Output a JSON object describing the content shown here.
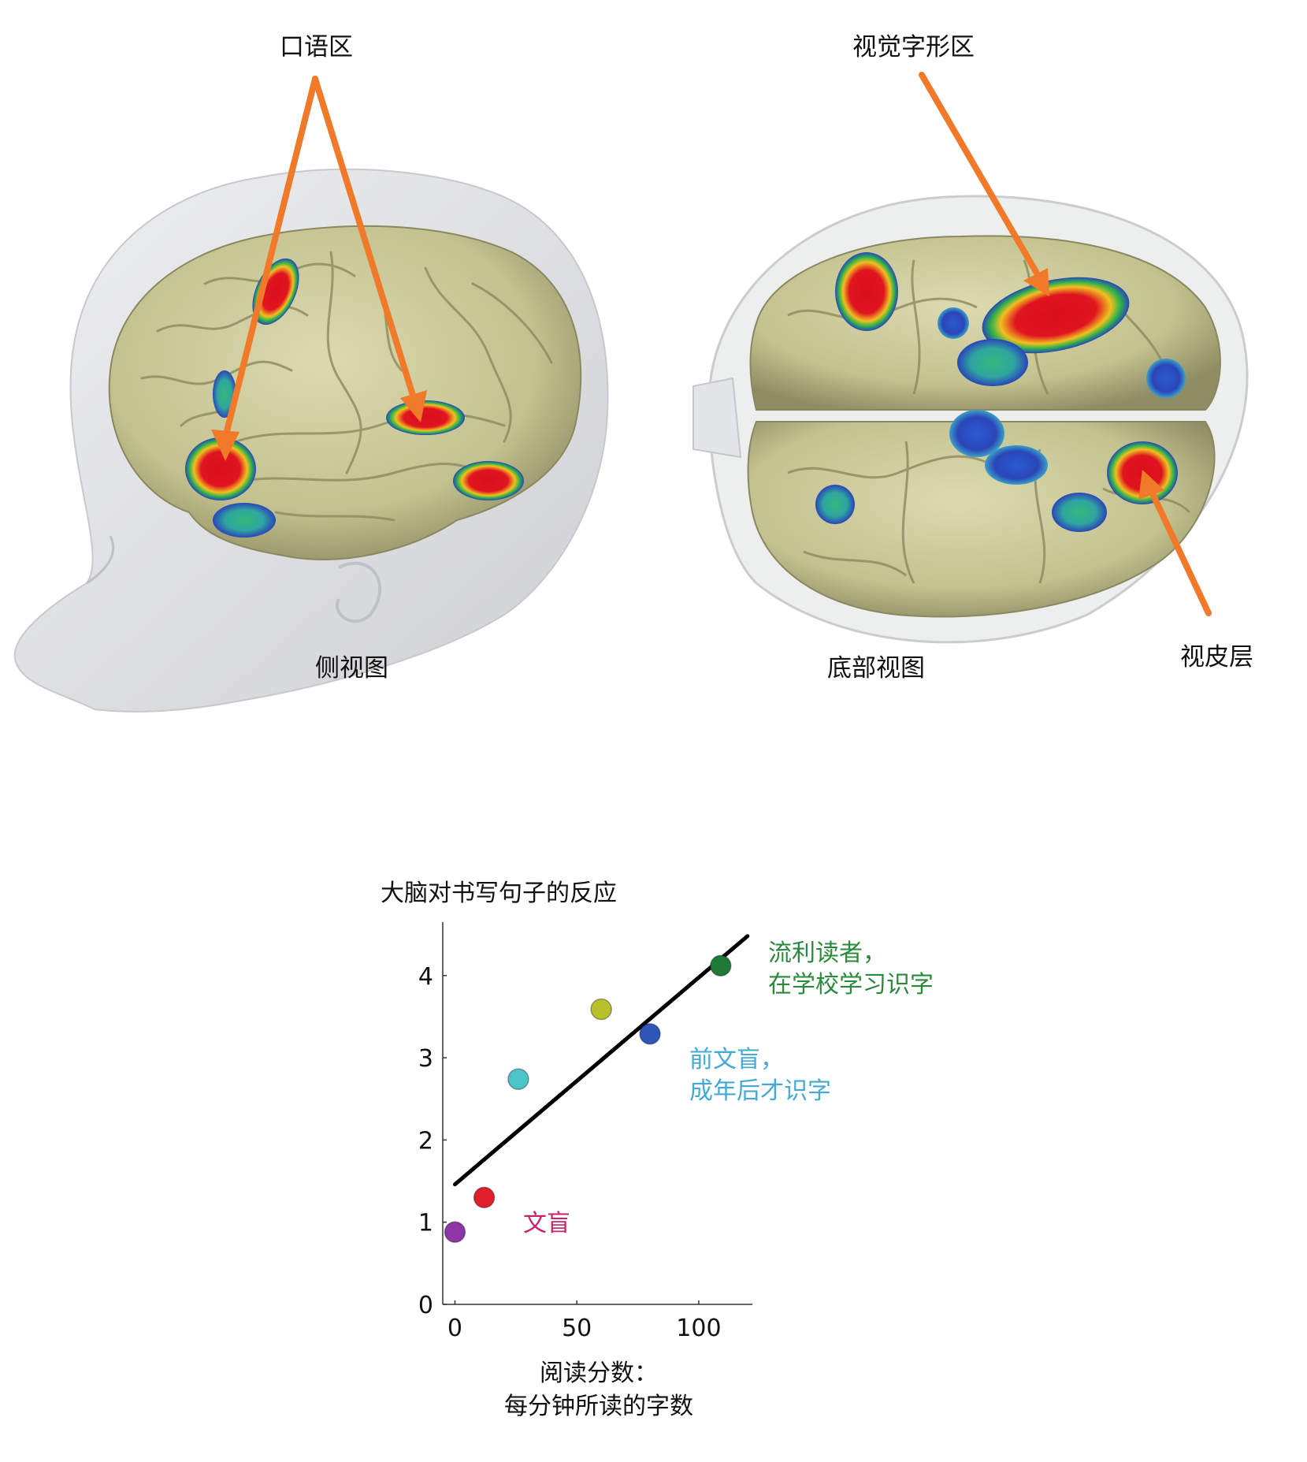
{
  "figure": {
    "labels": {
      "spoken_language_area": "口语区",
      "visual_word_form_area": "视觉字形区",
      "lateral_view": "侧视图",
      "bottom_view": "底部视图",
      "visual_cortex": "视皮层"
    },
    "colors": {
      "arrow": "#f07a2a",
      "brain": "#c9c79a",
      "head": "#dcdddf",
      "activation_hot": "#e0141f",
      "activation_mid": "#2fb24a",
      "activation_low": "#2a46b8"
    },
    "icons": [
      "head-icon",
      "brain-lateral-icon",
      "brain-bottom-icon",
      "arrow-icon"
    ]
  },
  "chart_data": {
    "type": "scatter",
    "title": "大脑对书写句子的反应",
    "xlabel_lines": [
      "阅读分数：",
      "每分钟所读的字数"
    ],
    "ylabel": "",
    "xlim": [
      -5,
      122
    ],
    "ylim": [
      0,
      4.65
    ],
    "xticks": [
      0,
      50,
      100
    ],
    "yticks": [
      0,
      1,
      2,
      3,
      4
    ],
    "points": [
      {
        "x": 0,
        "y": 0.88,
        "color": "#8e35a8"
      },
      {
        "x": 12,
        "y": 1.3,
        "color": "#e01f2b"
      },
      {
        "x": 26,
        "y": 2.74,
        "color": "#4dc4c7"
      },
      {
        "x": 60,
        "y": 3.59,
        "color": "#b8c12c"
      },
      {
        "x": 80,
        "y": 3.29,
        "color": "#2f56b8"
      },
      {
        "x": 109,
        "y": 4.12,
        "color": "#1e7a36"
      }
    ],
    "fit_line": {
      "x": [
        0,
        120
      ],
      "y": [
        1.46,
        4.48
      ]
    },
    "annotations": [
      {
        "lines": [
          "流利读者，",
          "在学校学习识字"
        ],
        "color": "#2a8a3c"
      },
      {
        "lines": [
          "前文盲，",
          "成年后才识字"
        ],
        "color": "#45a9d6"
      },
      {
        "lines": [
          "文盲"
        ],
        "color": "#c4246e"
      }
    ]
  }
}
